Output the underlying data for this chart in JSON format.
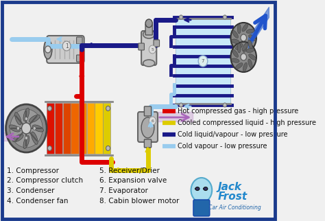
{
  "bg_color": "#f0f0f0",
  "border_color": "#1a3a8c",
  "legend_items": [
    {
      "label": "Hot compressed gas - high pressure",
      "color": "#dd0000"
    },
    {
      "label": "Cooled compressed liquid - high pressure",
      "color": "#ddcc00"
    },
    {
      "label": "Cold liquid/vapour - low pressure",
      "color": "#1a1a88"
    },
    {
      "label": "Cold vapour - low pressure",
      "color": "#99ccee"
    }
  ],
  "numbered_labels_left": [
    "1. Compressor",
    "2. Compressor clutch",
    "3. Condenser",
    "4. Condenser fan"
  ],
  "numbered_labels_right": [
    "5. Receiver/Drier",
    "6. Expansion valve",
    "7. Evaporator",
    "8. Cabin blower motor"
  ],
  "font_color": "#111111",
  "font_size_labels": 7.5,
  "font_size_legend": 7.0,
  "C_RED": "#dd0000",
  "C_YEL": "#ddcc00",
  "C_BLUE": "#1a1a88",
  "C_LBLUE": "#99ccee",
  "C_PURPLE": "#aa66bb"
}
